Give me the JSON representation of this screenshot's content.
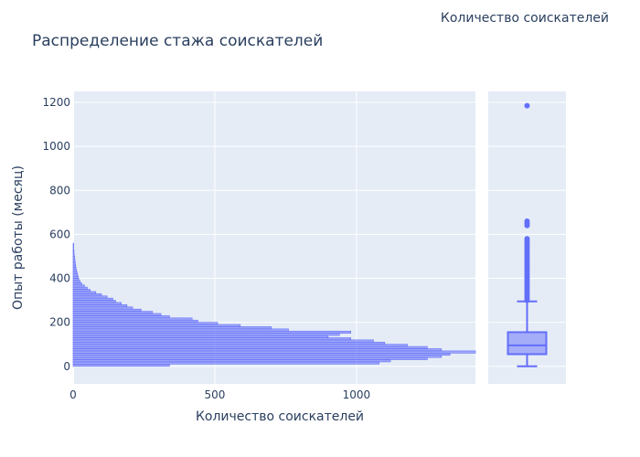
{
  "chart_data": [
    {
      "type": "bar",
      "orientation": "horizontal",
      "title": "Распределение стажа соискателей",
      "xlabel": "Количество соискателей",
      "ylabel": "Опыт работы (месяц)",
      "legend_title": "Количество соискателей",
      "xlim": [
        0,
        1420
      ],
      "ylim": [
        -80,
        1250
      ],
      "x_ticks": [
        0,
        500,
        1000
      ],
      "x_tick_labels": [
        "0",
        "500",
        "1000"
      ],
      "y_ticks": [
        0,
        200,
        400,
        600,
        800,
        1000,
        1200
      ],
      "y_tick_labels": [
        "0",
        "200",
        "400",
        "600",
        "800",
        "1000",
        "1200"
      ],
      "bin_width": 10,
      "bins_start": [
        0,
        10,
        20,
        30,
        40,
        50,
        60,
        70,
        80,
        90,
        100,
        110,
        120,
        130,
        140,
        150,
        160,
        170,
        180,
        190,
        200,
        210,
        220,
        230,
        240,
        250,
        260,
        270,
        280,
        290,
        300,
        310,
        320,
        330,
        340,
        350,
        360,
        370,
        380,
        390,
        400,
        410,
        420,
        430,
        440,
        450,
        460,
        470,
        480,
        490,
        500,
        510,
        520,
        530,
        540,
        550
      ],
      "counts": [
        340,
        1080,
        1120,
        1250,
        1300,
        1330,
        1420,
        1300,
        1250,
        1180,
        1100,
        1060,
        980,
        900,
        940,
        980,
        760,
        700,
        590,
        510,
        440,
        420,
        340,
        310,
        280,
        240,
        210,
        190,
        170,
        150,
        140,
        120,
        100,
        80,
        60,
        50,
        40,
        30,
        25,
        20,
        18,
        16,
        14,
        12,
        10,
        9,
        8,
        7,
        6,
        5,
        4,
        3,
        3,
        2,
        2,
        2
      ],
      "color": "#636efa"
    },
    {
      "type": "box",
      "ylabel": "Опыт работы (месяц)",
      "min": 0,
      "q1": 55,
      "median": 95,
      "q3": 155,
      "upper_fence": 295,
      "outliers": [
        300,
        310,
        320,
        330,
        340,
        350,
        360,
        370,
        380,
        390,
        400,
        410,
        420,
        430,
        440,
        450,
        460,
        470,
        480,
        490,
        500,
        510,
        520,
        530,
        540,
        550,
        560,
        570,
        580,
        640,
        650,
        660,
        1185
      ],
      "color": "#636efa"
    }
  ]
}
